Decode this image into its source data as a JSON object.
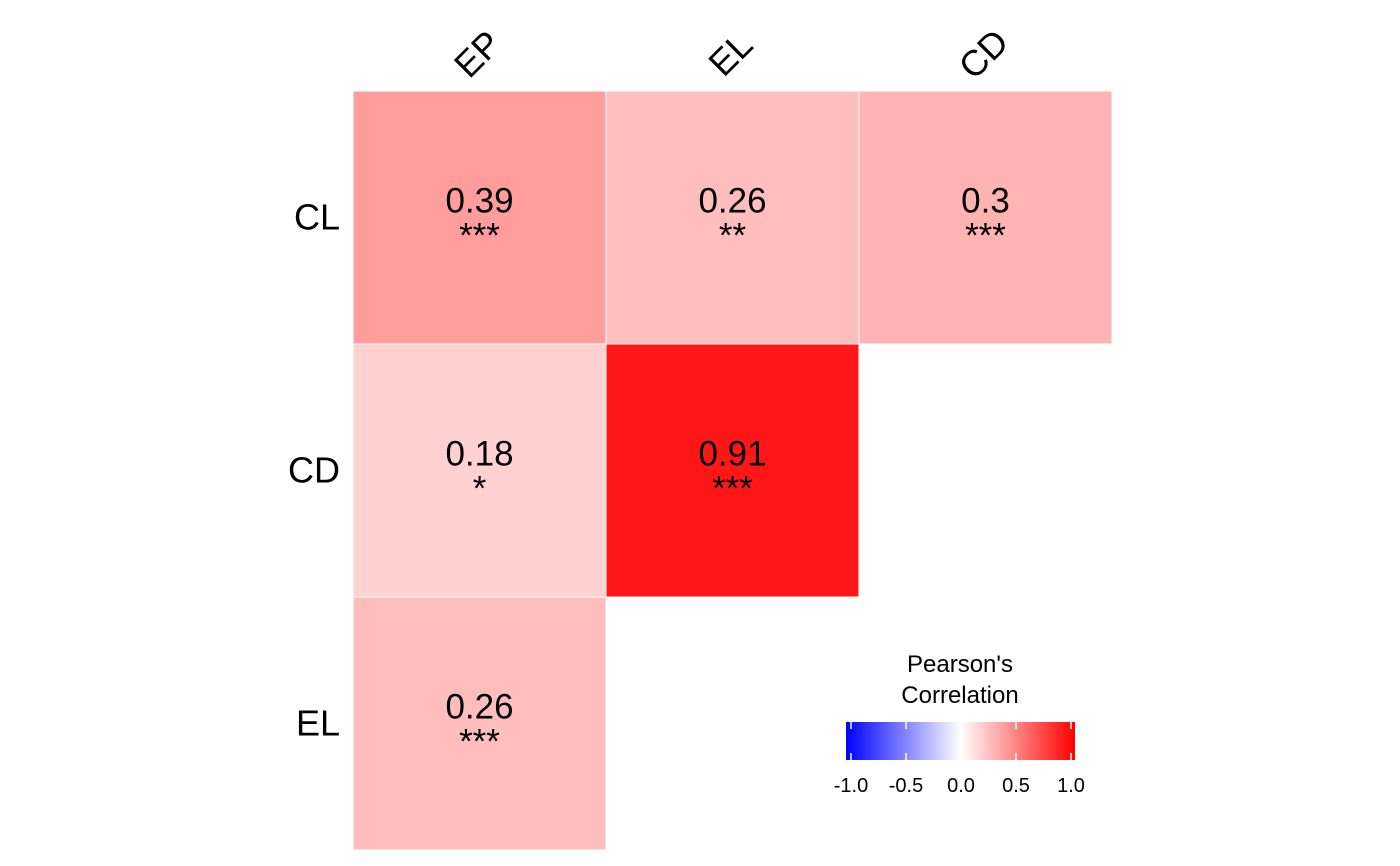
{
  "chart_data": {
    "type": "heatmap",
    "title": "",
    "xlabel": "",
    "ylabel": "",
    "columns": [
      "EP",
      "EL",
      "CD"
    ],
    "rows": [
      "CL",
      "CD",
      "EL"
    ],
    "cells": [
      {
        "row": "CL",
        "col": "EP",
        "value": 0.39,
        "stars": "***"
      },
      {
        "row": "CL",
        "col": "EL",
        "value": 0.26,
        "stars": "**"
      },
      {
        "row": "CL",
        "col": "CD",
        "value": 0.3,
        "stars": "***"
      },
      {
        "row": "CD",
        "col": "EP",
        "value": 0.18,
        "stars": "*"
      },
      {
        "row": "CD",
        "col": "EL",
        "value": 0.91,
        "stars": "***"
      },
      {
        "row": "EL",
        "col": "EP",
        "value": 0.26,
        "stars": "***"
      }
    ],
    "legend": {
      "title_lines": [
        "Pearson's",
        "Correlation"
      ],
      "ticks": [
        -1.0,
        -0.5,
        0.0,
        0.5,
        1.0
      ],
      "tick_labels": [
        "-1.0",
        "-0.5",
        "0.0",
        "0.5",
        "1.0"
      ],
      "range": [
        -1,
        1
      ],
      "placement": "bottom-right"
    },
    "colors": {
      "low": "#0000FF",
      "mid": "#FFFFFF",
      "high": "#FF0000",
      "border": "#FFFFFF",
      "text": "#000000"
    }
  }
}
